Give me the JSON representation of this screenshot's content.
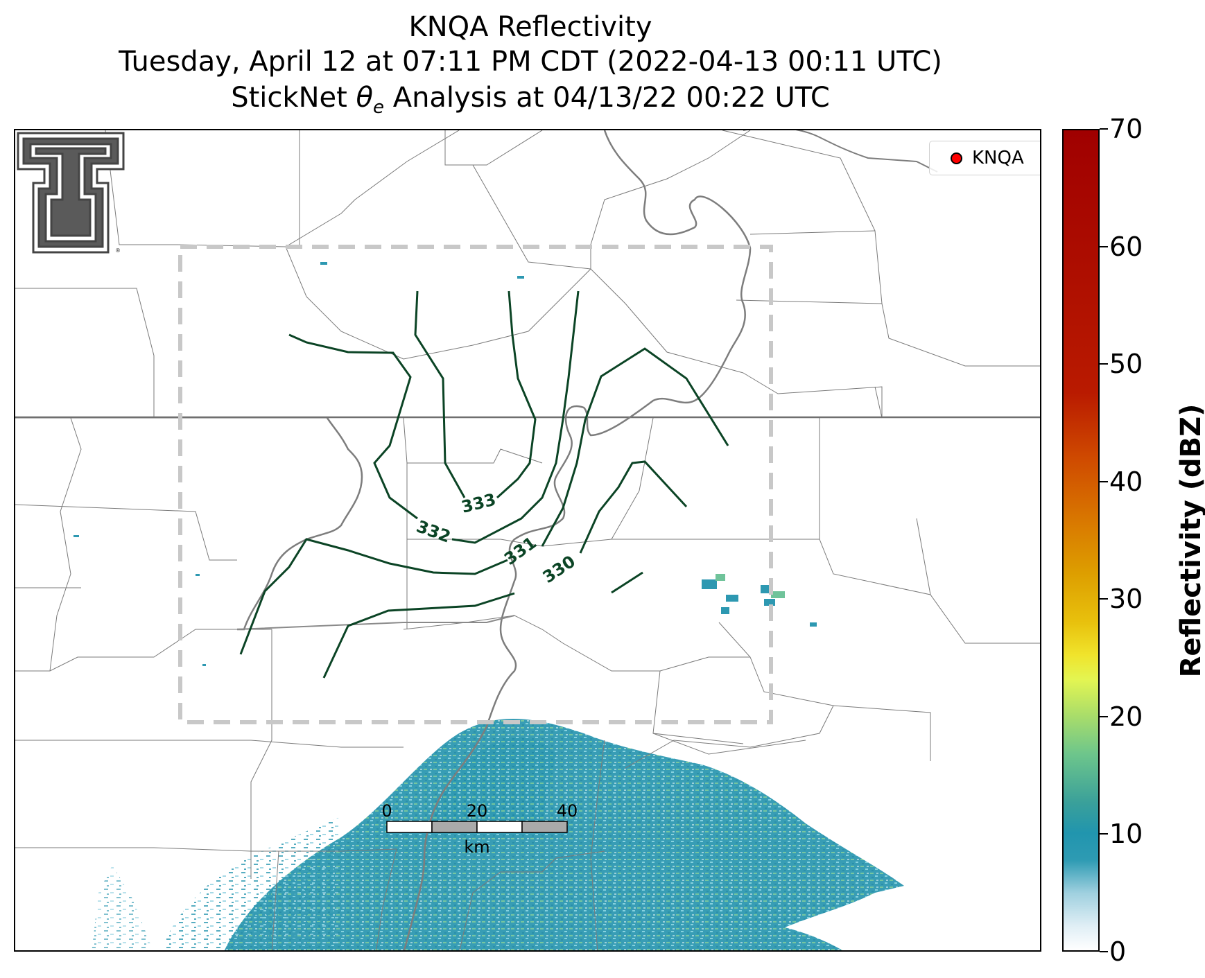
{
  "title": {
    "line1": "KNQA Reflectivity",
    "line2": "Tuesday, April 12 at 07:11 PM CDT (2022-04-13 00:11 UTC)",
    "line3_prefix": "StickNet ",
    "line3_symbol": "θ",
    "line3_subscript": "e",
    "line3_suffix": " Analysis at 04/13/22 00:22 UTC"
  },
  "legend": {
    "label": "KNQA",
    "marker_color": "#ff0000"
  },
  "contours": {
    "color": "#0b4425",
    "labels": [
      "333",
      "332",
      "331",
      "330"
    ]
  },
  "scalebar": {
    "ticks": [
      "0",
      "20",
      "40"
    ],
    "unit": "km"
  },
  "colorbar": {
    "label": "Reflectivity (dBZ)",
    "min": 0,
    "max": 70,
    "ticks": [
      "0",
      "10",
      "20",
      "30",
      "40",
      "50",
      "60",
      "70"
    ],
    "colors": {
      "low": "#ffffff",
      "ten": "#2195ae",
      "twenty": "#a9dd6a",
      "thirty": "#e3f552",
      "forty": "#e8c10d",
      "fifty": "#d97a00",
      "seventy": "#a00000"
    }
  },
  "analysis_box": {
    "style": "dashed",
    "color": "#c8c8c8"
  },
  "logo": {
    "name": "Texas Tech Double T"
  }
}
